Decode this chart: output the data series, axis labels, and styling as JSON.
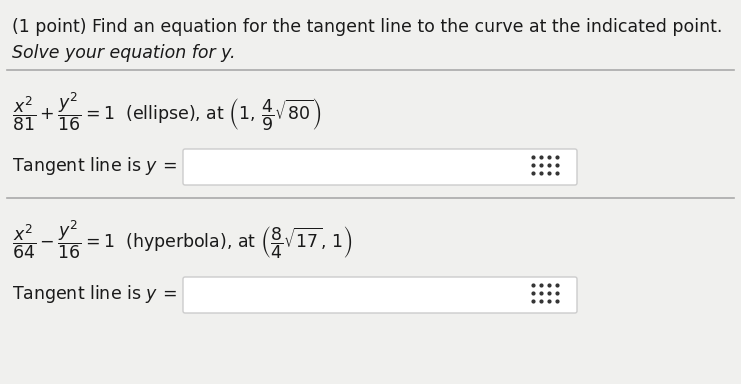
{
  "bg_color": "#f0f0ee",
  "white_color": "#ffffff",
  "text_color": "#1a1a1a",
  "box_border_color": "#cccccc",
  "sep_line_color": "#aaaaaa",
  "dot_color": "#333333",
  "title_line1": "(1 point) Find an equation for the tangent line to the curve at the indicated point.",
  "title_line2": "Solve your equation for y.",
  "fig_width": 7.41,
  "fig_height": 3.84,
  "dpi": 100,
  "fs_title": 12.5,
  "fs_math": 12.5
}
